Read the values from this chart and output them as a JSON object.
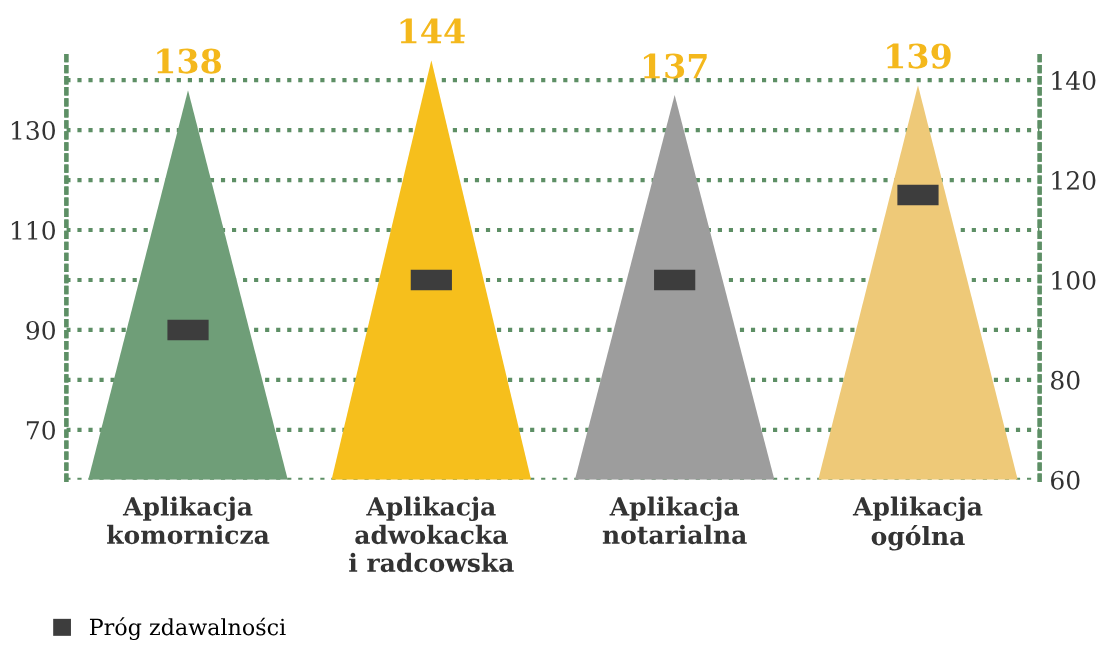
{
  "chart_data": {
    "type": "bar",
    "categories": [
      "Aplikacja\nkomornicza",
      "Aplikacja\nadwokacka\ni radcowska",
      "Aplikacja\nnotarialna",
      "Aplikacja\nogólna"
    ],
    "series": [
      {
        "colors": [
          "#6f9e78",
          "#f6bf1c",
          "#9d9d9d",
          "#eec978"
        ],
        "values": [
          138,
          144,
          137,
          139
        ],
        "value_labels": [
          "138",
          "144",
          "137",
          "139"
        ]
      },
      {
        "type": "scatter",
        "name": "Próg zdawalności",
        "color": "#3d3d3d",
        "values": [
          90,
          100,
          100,
          117
        ],
        "marker": "square"
      }
    ],
    "ylim": [
      60,
      146
    ],
    "yticks": [
      70,
      90,
      110,
      130
    ],
    "y2lim": [
      60,
      146
    ],
    "y2ticks": [
      60,
      80,
      100,
      120,
      140
    ],
    "grid": "y",
    "legend": "bottom left"
  }
}
